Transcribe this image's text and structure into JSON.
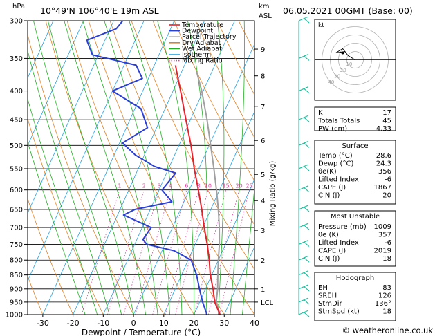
{
  "header": {
    "location": "10°49'N  106°40'E  19m  ASL",
    "datetime": "06.05.2021  00GMT  (Base: 00)",
    "hpa_unit": "hPa",
    "km_unit": "km",
    "asl_unit": "ASL"
  },
  "legend": [
    {
      "label": "Temperature",
      "color": "#e8202a",
      "style": "solid"
    },
    {
      "label": "Dewpoint",
      "color": "#2a3fd6",
      "style": "solid"
    },
    {
      "label": "Parcel Trajectory",
      "color": "#a0a0a0",
      "style": "solid"
    },
    {
      "label": "Dry Adiabat",
      "color": "#e08020",
      "style": "solid"
    },
    {
      "label": "Wet Adiabat",
      "color": "#20b020",
      "style": "solid"
    },
    {
      "label": "Isotherm",
      "color": "#20a0e0",
      "style": "solid"
    },
    {
      "label": "Mixing Ratio",
      "color": "#e040a0",
      "style": "dotted"
    }
  ],
  "chart_data": {
    "type": "skew-t",
    "xlabel": "Dewpoint / Temperature (°C)",
    "ylabel_right": "Mixing Ratio (g/kg)",
    "y_unit": "hPa",
    "x_range": [
      -35,
      40
    ],
    "p_range": [
      300,
      1000
    ],
    "pressure_ticks": [
      300,
      350,
      400,
      450,
      500,
      550,
      600,
      650,
      700,
      750,
      800,
      850,
      900,
      950,
      1000
    ],
    "temp_ticks": [
      -30,
      -20,
      -10,
      0,
      10,
      20,
      30,
      40
    ],
    "km_ticks": [
      {
        "label": "9",
        "p": 337
      },
      {
        "label": "8",
        "p": 376
      },
      {
        "label": "7",
        "p": 426
      },
      {
        "label": "6",
        "p": 490
      },
      {
        "label": "5",
        "p": 563
      },
      {
        "label": "4",
        "p": 627
      },
      {
        "label": "3",
        "p": 708
      },
      {
        "label": "2",
        "p": 800
      },
      {
        "label": "1",
        "p": 900
      },
      {
        "label": "LCL",
        "p": 950
      }
    ],
    "mixing_ratio_labels": [
      "1",
      "2",
      "3",
      "4",
      "6",
      "8",
      "10",
      "15",
      "20",
      "25"
    ],
    "mixing_ratio_values": [
      1,
      2,
      3,
      4,
      6,
      8,
      10,
      15,
      20,
      25
    ],
    "temperature": [
      {
        "p": 1000,
        "t": 28.6
      },
      {
        "p": 950,
        "t": 25
      },
      {
        "p": 900,
        "t": 22.5
      },
      {
        "p": 850,
        "t": 19.5
      },
      {
        "p": 800,
        "t": 17
      },
      {
        "p": 750,
        "t": 14
      },
      {
        "p": 700,
        "t": 10.5
      },
      {
        "p": 650,
        "t": 7
      },
      {
        "p": 600,
        "t": 3
      },
      {
        "p": 550,
        "t": -1.5
      },
      {
        "p": 500,
        "t": -6
      },
      {
        "p": 450,
        "t": -11.5
      },
      {
        "p": 400,
        "t": -17.5
      },
      {
        "p": 360,
        "t": -23
      }
    ],
    "dewpoint": [
      {
        "p": 1000,
        "t": 24.3
      },
      {
        "p": 950,
        "t": 21
      },
      {
        "p": 900,
        "t": 18
      },
      {
        "p": 850,
        "t": 15
      },
      {
        "p": 800,
        "t": 11
      },
      {
        "p": 770,
        "t": 4
      },
      {
        "p": 750,
        "t": -6
      },
      {
        "p": 735,
        "t": -8
      },
      {
        "p": 700,
        "t": -7
      },
      {
        "p": 665,
        "t": -18
      },
      {
        "p": 650,
        "t": -15
      },
      {
        "p": 630,
        "t": -4
      },
      {
        "p": 600,
        "t": -9
      },
      {
        "p": 560,
        "t": -7
      },
      {
        "p": 545,
        "t": -15
      },
      {
        "p": 520,
        "t": -23
      },
      {
        "p": 495,
        "t": -29
      },
      {
        "p": 465,
        "t": -23
      },
      {
        "p": 430,
        "t": -28
      },
      {
        "p": 400,
        "t": -40
      },
      {
        "p": 380,
        "t": -32
      },
      {
        "p": 360,
        "t": -36
      },
      {
        "p": 345,
        "t": -52
      },
      {
        "p": 325,
        "t": -56
      },
      {
        "p": 310,
        "t": -48
      },
      {
        "p": 300,
        "t": -47
      }
    ],
    "parcel": [
      {
        "p": 1000,
        "t": 28.6
      },
      {
        "p": 950,
        "t": 25.5
      },
      {
        "p": 900,
        "t": 24
      },
      {
        "p": 850,
        "t": 22
      },
      {
        "p": 800,
        "t": 20
      },
      {
        "p": 750,
        "t": 18
      },
      {
        "p": 700,
        "t": 15.5
      },
      {
        "p": 650,
        "t": 12.5
      },
      {
        "p": 600,
        "t": 9
      },
      {
        "p": 550,
        "t": 5
      },
      {
        "p": 500,
        "t": 0.5
      },
      {
        "p": 450,
        "t": -4.5
      },
      {
        "p": 400,
        "t": -10.5
      },
      {
        "p": 370,
        "t": -15
      }
    ],
    "hodograph": {
      "label": "kt",
      "ring_labels": [
        "10",
        "20",
        "30",
        "40"
      ]
    }
  },
  "indices": [
    {
      "label": "K",
      "value": "17"
    },
    {
      "label": "Totals Totals",
      "value": "45"
    },
    {
      "label": "PW (cm)",
      "value": "4.33"
    }
  ],
  "surface": {
    "title": "Surface",
    "rows": [
      {
        "label": "Temp (°C)",
        "value": "28.6"
      },
      {
        "label": "Dewp (°C)",
        "value": "24.3"
      },
      {
        "label": "θe(K)",
        "value": "356"
      },
      {
        "label": "Lifted Index",
        "value": "-6"
      },
      {
        "label": "CAPE (J)",
        "value": "1867"
      },
      {
        "label": "CIN (J)",
        "value": "20"
      }
    ]
  },
  "most_unstable": {
    "title": "Most Unstable",
    "rows": [
      {
        "label": "Pressure (mb)",
        "value": "1009"
      },
      {
        "label": "θe (K)",
        "value": "357"
      },
      {
        "label": "Lifted Index",
        "value": "-6"
      },
      {
        "label": "CAPE (J)",
        "value": "2019"
      },
      {
        "label": "CIN (J)",
        "value": "18"
      }
    ]
  },
  "hodograph_box": {
    "title": "Hodograph",
    "rows": [
      {
        "label": "EH",
        "value": "83"
      },
      {
        "label": "SREH",
        "value": "126"
      },
      {
        "label": "StmDir",
        "value": "136°"
      },
      {
        "label": "StmSpd (kt)",
        "value": "18"
      }
    ]
  },
  "footer": {
    "copyright": "© weatheronline.co.uk"
  },
  "colors": {
    "temperature": "#e8202a",
    "dewpoint": "#2a3fd6",
    "parcel": "#a0a0a0",
    "dry_adiabat": "#e08020",
    "wet_adiabat": "#20b020",
    "isotherm": "#20a0e0",
    "mixing_ratio": "#e040a0",
    "wind_barb": "#20c0a0"
  }
}
